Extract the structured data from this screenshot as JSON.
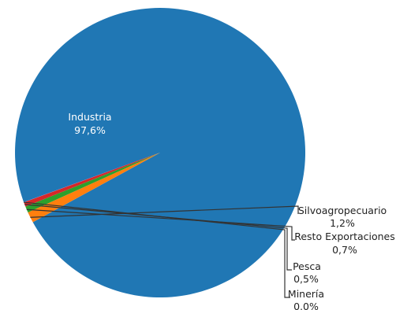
{
  "chart_data": {
    "type": "pie",
    "title": "",
    "start_angle_deg": 160,
    "direction": "clockwise",
    "labels_inside": [
      "Industria"
    ],
    "slices": [
      {
        "label": "Industria",
        "value_label": "97,6%",
        "value": 97.6,
        "color": "#2077b4"
      },
      {
        "label": "Silvoagropecuario",
        "value_label": "1,2%",
        "value": 1.2,
        "color": "#ff7f0e"
      },
      {
        "label": "Resto Exportaciones",
        "value_label": "0,7%",
        "value": 0.7,
        "color": "#2ca02c"
      },
      {
        "label": "Pesca",
        "value_label": "0,5%",
        "value": 0.5,
        "color": "#d62728"
      },
      {
        "label": "Minería",
        "value_label": "0,0%",
        "value": 0.02,
        "color": "#9467bd"
      }
    ]
  }
}
